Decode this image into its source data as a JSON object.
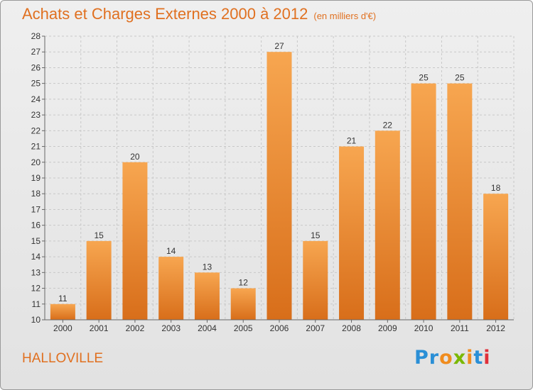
{
  "header": {
    "title": "Achats et Charges Externes 2000 à 2012",
    "unit": "(en milliers d'€)"
  },
  "footer": {
    "name": "HALLOVILLE"
  },
  "logo": {
    "letters": [
      "P",
      "r",
      "o",
      "x",
      "i",
      "t",
      "i"
    ],
    "colors": [
      "#2a8fd6",
      "#2a8fd6",
      "#f08c1e",
      "#7ab800",
      "#f08c1e",
      "#2a8fd6",
      "#e0303a"
    ]
  },
  "colors": {
    "bar_light": "#f7a650",
    "bar_dark": "#d86e1a",
    "title": "#e07020"
  },
  "chart_data": {
    "type": "bar",
    "title": "Achats et Charges Externes 2000 à 2012",
    "categories": [
      "2000",
      "2001",
      "2002",
      "2003",
      "2004",
      "2005",
      "2006",
      "2007",
      "2008",
      "2009",
      "2010",
      "2011",
      "2012"
    ],
    "values": [
      11,
      15,
      20,
      14,
      13,
      12,
      27,
      15,
      21,
      22,
      25,
      25,
      18
    ],
    "ylim": [
      10,
      28
    ],
    "yticks": [
      10,
      11,
      12,
      13,
      14,
      15,
      16,
      17,
      18,
      19,
      20,
      21,
      22,
      23,
      24,
      25,
      26,
      27,
      28
    ],
    "grid": true,
    "xlabel": "",
    "ylabel": ""
  }
}
